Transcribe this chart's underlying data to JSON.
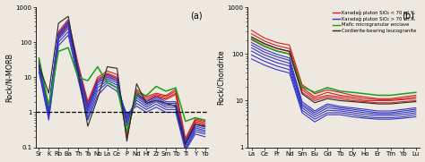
{
  "panel_a": {
    "xlabel_elements": [
      "Sr",
      "K",
      "Rb",
      "Ba",
      "Th",
      "Ta",
      "Nb",
      "La",
      "Ce",
      "P",
      "Nd",
      "Hf",
      "Zr",
      "Sm",
      "Tb",
      "Ti",
      "Y",
      "Yb"
    ],
    "ylabel": "Rock/N-MORB",
    "label": "(a)",
    "ylim": [
      0.1,
      1000
    ],
    "dashed_line": 1.0,
    "series_red": [
      [
        35,
        1.2,
        200,
        450,
        25,
        2.0,
        10,
        15,
        12,
        0.18,
        4.5,
        2.8,
        3.5,
        3.0,
        4.5,
        0.18,
        0.65,
        0.55
      ],
      [
        32,
        1.0,
        170,
        380,
        22,
        1.8,
        9,
        13,
        10,
        0.2,
        4.0,
        2.5,
        3.2,
        2.8,
        4.0,
        0.16,
        0.6,
        0.5
      ],
      [
        28,
        0.9,
        150,
        330,
        19,
        1.6,
        8,
        12,
        9,
        0.22,
        3.5,
        2.2,
        3.0,
        2.5,
        3.5,
        0.14,
        0.55,
        0.45
      ],
      [
        25,
        0.8,
        130,
        290,
        17,
        1.4,
        7,
        11,
        8,
        0.25,
        3.2,
        2.0,
        2.8,
        2.3,
        3.2,
        0.13,
        0.5,
        0.42
      ]
    ],
    "series_blue": [
      [
        30,
        1.5,
        180,
        400,
        20,
        1.5,
        8,
        12,
        9,
        0.4,
        3.5,
        2.0,
        2.8,
        2.0,
        2.0,
        0.15,
        0.45,
        0.38
      ],
      [
        27,
        1.3,
        160,
        350,
        17,
        1.3,
        7,
        10,
        8,
        0.5,
        3.0,
        1.8,
        2.5,
        1.8,
        1.8,
        0.13,
        0.4,
        0.34
      ],
      [
        24,
        1.1,
        140,
        300,
        15,
        1.1,
        6,
        9,
        7,
        0.6,
        2.6,
        1.6,
        2.2,
        1.6,
        1.6,
        0.12,
        0.36,
        0.3
      ],
      [
        20,
        0.9,
        120,
        250,
        13,
        0.9,
        5,
        8,
        6,
        0.7,
        2.2,
        1.4,
        2.0,
        1.4,
        1.4,
        0.1,
        0.32,
        0.27
      ],
      [
        17,
        0.7,
        100,
        200,
        11,
        0.7,
        4,
        7,
        5,
        0.8,
        1.8,
        1.2,
        1.7,
        1.2,
        1.2,
        0.09,
        0.28,
        0.24
      ],
      [
        14,
        0.6,
        80,
        160,
        9,
        0.6,
        3,
        6,
        4,
        0.9,
        1.5,
        1.0,
        1.4,
        1.0,
        1.0,
        0.08,
        0.24,
        0.2
      ]
    ],
    "series_green": [
      [
        35,
        1.5,
        55,
        70,
        10,
        8.0,
        20,
        7,
        5,
        0.28,
        3.5,
        3.0,
        5.5,
        4.0,
        5.0,
        0.55,
        0.7,
        0.6
      ]
    ],
    "series_black": [
      [
        22,
        3.5,
        350,
        550,
        14,
        0.4,
        2.5,
        20,
        18,
        0.15,
        6.5,
        1.8,
        2.2,
        1.8,
        1.5,
        0.12,
        0.45,
        0.4
      ]
    ]
  },
  "panel_b": {
    "xlabel_elements": [
      "La",
      "Ce",
      "Pr",
      "Nd",
      "Sm",
      "Eu",
      "Gd",
      "Tb",
      "Dy",
      "Ho",
      "Er",
      "Tm",
      "Yb",
      "Lu"
    ],
    "ylabel": "Rock/Chondrite",
    "label": "(b)",
    "ylim": [
      1,
      1000
    ],
    "series_red": [
      [
        320,
        220,
        175,
        155,
        22,
        14,
        17,
        15,
        13,
        12,
        11,
        11,
        12,
        13
      ],
      [
        270,
        190,
        150,
        130,
        19,
        12,
        15,
        13,
        12,
        11,
        10.5,
        10.5,
        11,
        12
      ],
      [
        230,
        165,
        130,
        112,
        17,
        11,
        13,
        12,
        11,
        10,
        10,
        10,
        10.5,
        11
      ],
      [
        200,
        145,
        115,
        100,
        15,
        10,
        12,
        11,
        10,
        9.5,
        9,
        9,
        9.5,
        10
      ]
    ],
    "series_blue": [
      [
        175,
        125,
        98,
        82,
        9.5,
        6.0,
        8.5,
        7.5,
        7.0,
        6.5,
        6.0,
        6.0,
        6.5,
        7.0
      ],
      [
        155,
        110,
        87,
        73,
        8.5,
        5.5,
        7.8,
        7.0,
        6.5,
        6.0,
        5.5,
        5.5,
        6.0,
        6.5
      ],
      [
        135,
        96,
        76,
        63,
        7.8,
        5.0,
        7.0,
        6.5,
        6.0,
        5.5,
        5.2,
        5.2,
        5.5,
        6.0
      ],
      [
        115,
        83,
        65,
        55,
        7.0,
        4.5,
        6.2,
        6.0,
        5.5,
        5.0,
        4.8,
        4.8,
        5.0,
        5.5
      ],
      [
        95,
        70,
        55,
        46,
        6.2,
        4.0,
        5.5,
        5.5,
        5.0,
        4.5,
        4.3,
        4.3,
        4.5,
        5.0
      ],
      [
        78,
        58,
        46,
        39,
        5.5,
        3.5,
        5.0,
        5.0,
        4.5,
        4.2,
        4.0,
        4.0,
        4.2,
        4.5
      ]
    ],
    "series_green": [
      [
        210,
        148,
        115,
        100,
        20,
        15,
        19,
        16,
        15,
        14,
        13,
        13,
        14,
        15
      ]
    ],
    "series_black": [
      [
        230,
        168,
        132,
        114,
        14,
        9,
        11,
        10,
        9.5,
        9,
        8.5,
        8.5,
        9,
        9.5
      ]
    ]
  },
  "legend": {
    "red_label": "Karadağ pluton SiO₂ < 70 wt.%",
    "blue_label": "Karadağ pluton SiO₂ > 70 wt.%",
    "green_label": "Mafic microgranular enclave",
    "black_label": "Cordierite-bearing leucogranite"
  },
  "bg_color": "#ede8e0",
  "plot_bg": "#ede8e0"
}
